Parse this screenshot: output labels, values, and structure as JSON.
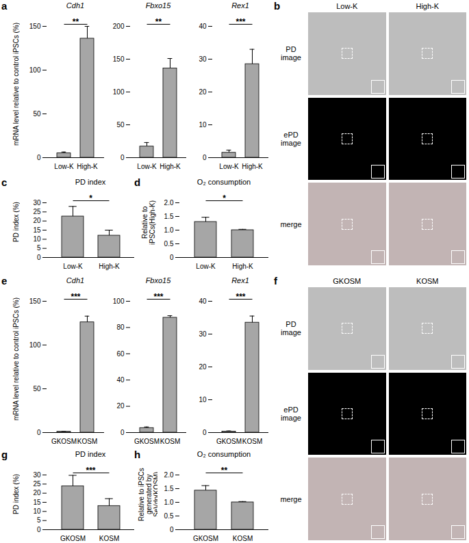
{
  "chart_data": [
    {
      "panel": "a",
      "type": "bar",
      "title": "Cdh1",
      "ylabel": "mRNA level relative to control iPSCs (%)",
      "categories": [
        "Low-K",
        "High-K"
      ],
      "values": [
        5,
        136
      ],
      "errors": [
        1.5,
        14
      ],
      "ylim": [
        0,
        150
      ],
      "yticks": [
        0,
        50,
        100,
        150
      ],
      "annotation": "**",
      "color": "#a6a6a6"
    },
    {
      "type": "bar",
      "title": "Fbxo15",
      "categories": [
        "Low-K",
        "High-K"
      ],
      "values": [
        17,
        136
      ],
      "errors": [
        6,
        15
      ],
      "ylim": [
        0,
        200
      ],
      "yticks": [
        0,
        50,
        100,
        150,
        200
      ],
      "annotation": "**",
      "color": "#a6a6a6"
    },
    {
      "type": "bar",
      "title": "Rex1",
      "categories": [
        "Low-K",
        "High-K"
      ],
      "values": [
        1.5,
        28.5
      ],
      "errors": [
        0.8,
        4.5
      ],
      "ylim": [
        0,
        40
      ],
      "yticks": [
        0,
        10,
        20,
        30,
        40
      ],
      "annotation": "***",
      "color": "#a6a6a6"
    },
    {
      "panel": "c",
      "type": "bar",
      "title": "PD index",
      "ylabel": "PD index (%)",
      "categories": [
        "Low-K",
        "High-K"
      ],
      "values": [
        22.5,
        12
      ],
      "errors": [
        5.5,
        3
      ],
      "ylim": [
        0,
        30
      ],
      "yticks": [
        0,
        5,
        10,
        15,
        20,
        25,
        30
      ],
      "annotation": "*",
      "color": "#a6a6a6"
    },
    {
      "panel": "d",
      "type": "bar",
      "title": "O₂ consumption",
      "ylabel": "Relative to iPSCs(High-K)",
      "categories": [
        "Low-K",
        "High-K"
      ],
      "values": [
        1.3,
        1.0
      ],
      "errors": [
        0.17,
        0.03
      ],
      "ylim": [
        0,
        2
      ],
      "yticks": [
        0,
        0.5,
        {
          "value": 1,
          "label": "1.0"
        },
        1.5,
        {
          "value": 2,
          "label": "2.0"
        }
      ],
      "annotation": "*",
      "color": "#a6a6a6"
    },
    {
      "panel": "e",
      "type": "bar",
      "title": "Cdh1",
      "ylabel": "mRNA level relative to control iPSCs (%)",
      "categories": [
        "GKOSM",
        "KOSM"
      ],
      "values": [
        1,
        126
      ],
      "errors": [
        0.5,
        7
      ],
      "ylim": [
        0,
        150
      ],
      "yticks": [
        0,
        50,
        100,
        150
      ],
      "annotation": "***",
      "color": "#a6a6a6"
    },
    {
      "type": "bar",
      "title": "Fbxo15",
      "categories": [
        "GKOSM",
        "KOSM"
      ],
      "values": [
        3.5,
        87.5
      ],
      "errors": [
        0.8,
        1.5
      ],
      "ylim": [
        0,
        100
      ],
      "yticks": [
        0,
        20,
        40,
        60,
        80,
        100
      ],
      "annotation": "***",
      "color": "#a6a6a6"
    },
    {
      "type": "bar",
      "title": "Rex1",
      "categories": [
        "GKOSM",
        "KOSM"
      ],
      "values": [
        0.3,
        33.5
      ],
      "errors": [
        0.2,
        2
      ],
      "ylim": [
        0,
        40
      ],
      "yticks": [
        0,
        10,
        20,
        30,
        40
      ],
      "annotation": "***",
      "color": "#a6a6a6"
    },
    {
      "panel": "g",
      "type": "bar",
      "title": "PD index",
      "ylabel": "PD index (%)",
      "categories": [
        "GKOSM",
        "KOSM"
      ],
      "values": [
        23.8,
        13
      ],
      "errors": [
        6,
        4
      ],
      "ylim": [
        0,
        30
      ],
      "yticks": [
        0,
        5,
        10,
        15,
        20,
        25,
        30
      ],
      "annotation": "***",
      "color": "#a6a6a6"
    },
    {
      "panel": "h",
      "type": "bar",
      "title": "O₂ consumption",
      "ylabel": "Relative to iPSCs generated by SeVdp(KOSM)",
      "categories": [
        "GKOSM",
        "KOSM"
      ],
      "values": [
        1.43,
        1.0
      ],
      "errors": [
        0.18,
        0.03
      ],
      "ylim": [
        0,
        2
      ],
      "yticks": [
        0,
        0.5,
        {
          "value": 1,
          "label": "1.0"
        },
        1.5,
        {
          "value": 2,
          "label": "2.0"
        }
      ],
      "annotation": "**",
      "color": "#a6a6a6"
    }
  ],
  "image_panels": [
    {
      "panel": "b",
      "columns": [
        "Low-K",
        "High-K"
      ],
      "rows": [
        "PD image",
        "ePD image",
        "merge"
      ]
    },
    {
      "panel": "f",
      "columns": [
        "GKOSM",
        "KOSM"
      ],
      "rows": [
        "PD image",
        "ePD image",
        "merge"
      ]
    }
  ]
}
